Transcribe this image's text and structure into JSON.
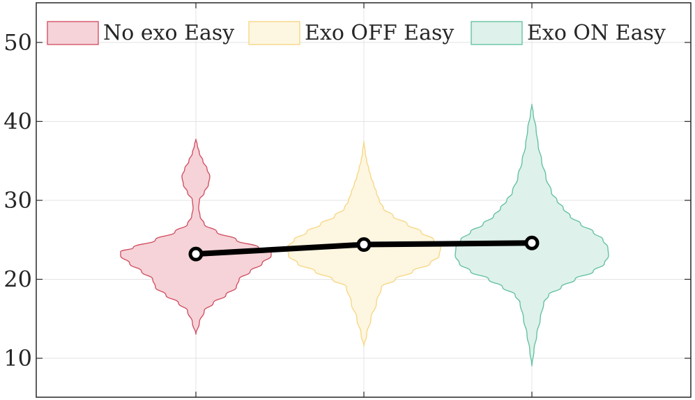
{
  "chart_data": {
    "type": "violin",
    "title": "",
    "xlabel": "",
    "ylabel": "",
    "ylim": [
      5,
      55
    ],
    "yticks": [
      10,
      20,
      30,
      40,
      50
    ],
    "grid": true,
    "legend_position": "top",
    "series": [
      {
        "name": "No exo Easy",
        "fill": "#f5d3d8",
        "stroke": "#d0485c",
        "min": 13,
        "max": 37.8,
        "mean": 23.2,
        "profile": [
          [
            13,
            0
          ],
          [
            14.5,
            5
          ],
          [
            16,
            12
          ],
          [
            17,
            25
          ],
          [
            18,
            43
          ],
          [
            19,
            58
          ],
          [
            20,
            62
          ],
          [
            21,
            78
          ],
          [
            22,
            95
          ],
          [
            23,
            108
          ],
          [
            23.5,
            108
          ],
          [
            24,
            90
          ],
          [
            25,
            58
          ],
          [
            26,
            30
          ],
          [
            27,
            12
          ],
          [
            28,
            6
          ],
          [
            29,
            4
          ],
          [
            30,
            5
          ],
          [
            31,
            12
          ],
          [
            32,
            18
          ],
          [
            33,
            20
          ],
          [
            34,
            16
          ],
          [
            35,
            10
          ],
          [
            36,
            5
          ],
          [
            37,
            2
          ],
          [
            37.8,
            0
          ]
        ]
      },
      {
        "name": "Exo OFF Easy",
        "fill": "#fdf6e1",
        "stroke": "#f6d57e",
        "min": 11.5,
        "max": 37.5,
        "mean": 24.4,
        "profile": [
          [
            11.5,
            0
          ],
          [
            13,
            4
          ],
          [
            15,
            10
          ],
          [
            17,
            18
          ],
          [
            19,
            25
          ],
          [
            20,
            45
          ],
          [
            21,
            70
          ],
          [
            22,
            95
          ],
          [
            23,
            108
          ],
          [
            24,
            110
          ],
          [
            25,
            100
          ],
          [
            26,
            82
          ],
          [
            27,
            62
          ],
          [
            28,
            42
          ],
          [
            29,
            28
          ],
          [
            30,
            22
          ],
          [
            31,
            18
          ],
          [
            32,
            14
          ],
          [
            33,
            10
          ],
          [
            34,
            7
          ],
          [
            35,
            4
          ],
          [
            36,
            2
          ],
          [
            37.5,
            0
          ]
        ]
      },
      {
        "name": "Exo ON Easy",
        "fill": "#def1ea",
        "stroke": "#5bbf9b",
        "min": 9,
        "max": 42.2,
        "mean": 24.6,
        "profile": [
          [
            9,
            0
          ],
          [
            11,
            3
          ],
          [
            13,
            7
          ],
          [
            15,
            12
          ],
          [
            17,
            17
          ],
          [
            18,
            24
          ],
          [
            19,
            42
          ],
          [
            20,
            62
          ],
          [
            21,
            88
          ],
          [
            22,
            104
          ],
          [
            23,
            110
          ],
          [
            24,
            109
          ],
          [
            25,
            102
          ],
          [
            26,
            88
          ],
          [
            27,
            70
          ],
          [
            28,
            55
          ],
          [
            29,
            45
          ],
          [
            30,
            36
          ],
          [
            31,
            28
          ],
          [
            33,
            20
          ],
          [
            35,
            14
          ],
          [
            37,
            9
          ],
          [
            39,
            6
          ],
          [
            41,
            2
          ],
          [
            42.2,
            0
          ]
        ]
      }
    ]
  }
}
